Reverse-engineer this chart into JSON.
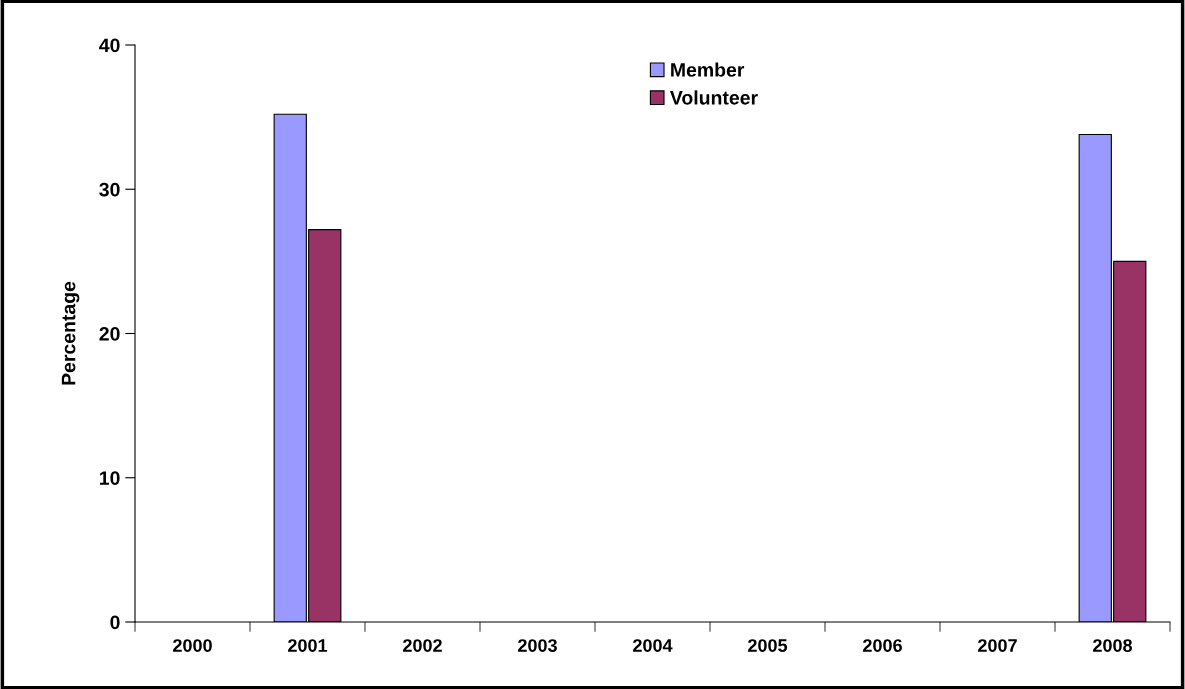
{
  "chart_data": {
    "type": "bar",
    "ylabel": "Percentage",
    "categories": [
      "2000",
      "2001",
      "2002",
      "2003",
      "2004",
      "2005",
      "2006",
      "2007",
      "2008"
    ],
    "series": [
      {
        "name": "Member",
        "color": "#9999ff",
        "values": [
          null,
          35.2,
          null,
          null,
          null,
          null,
          null,
          null,
          33.8
        ]
      },
      {
        "name": "Volunteer",
        "color": "#993366",
        "values": [
          null,
          27.2,
          null,
          null,
          null,
          null,
          null,
          null,
          25.0
        ]
      }
    ],
    "ylim": [
      0,
      40
    ],
    "yticks": [
      0,
      10,
      20,
      30,
      40
    ],
    "grid": false,
    "legend": "top"
  }
}
